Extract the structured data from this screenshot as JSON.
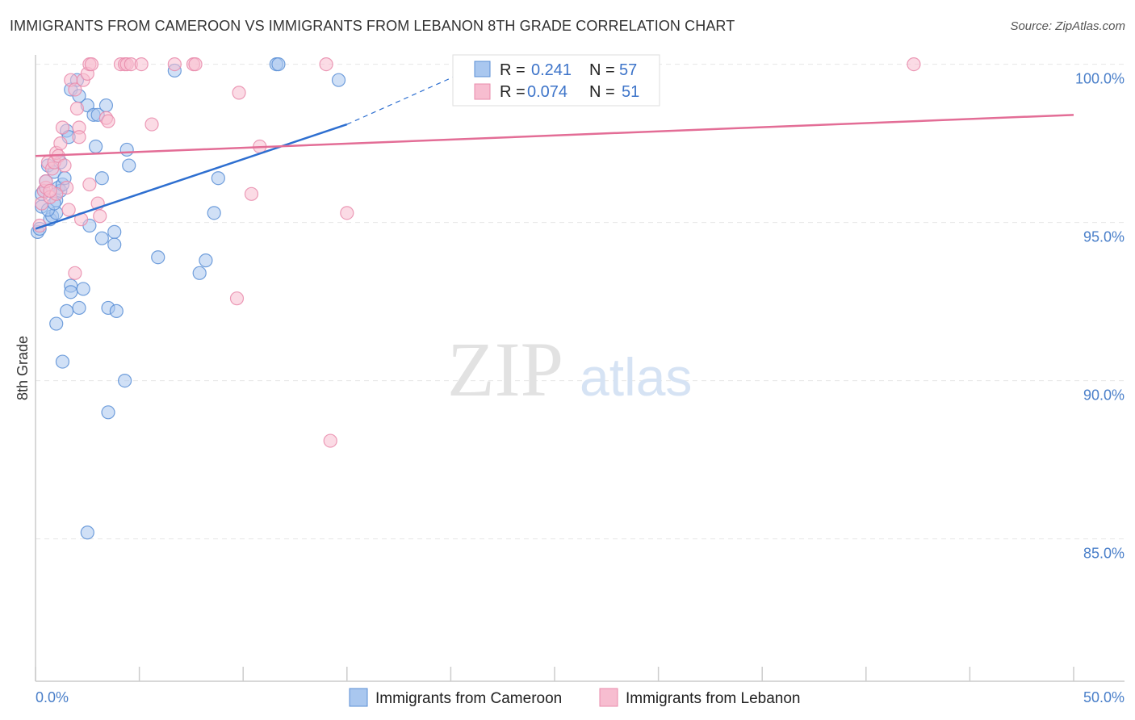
{
  "title": "IMMIGRANTS FROM CAMEROON VS IMMIGRANTS FROM LEBANON 8TH GRADE CORRELATION CHART",
  "source": "Source: ZipAtlas.com",
  "watermark": {
    "zip": "ZIP",
    "atlas": "atlas"
  },
  "colors": {
    "cameroon_fill": "#a9c7ef",
    "cameroon_stroke": "#5b8fd6",
    "cameroon_line": "#2e6fd0",
    "lebanon_fill": "#f7bdd0",
    "lebanon_stroke": "#e98bab",
    "lebanon_line": "#e36d96",
    "grid": "#e6e6e6",
    "axis": "#cccccc",
    "tick_text": "#4a7fc9"
  },
  "legend": [
    {
      "r_label": "R =",
      "r_value": "0.241",
      "n_label": "N =",
      "n_value": "57"
    },
    {
      "r_label": "R =",
      "r_value": "0.074",
      "n_label": "N =",
      "n_value": "51"
    }
  ],
  "bottom_legend": [
    "Immigrants from Cameroon",
    "Immigrants from Lebanon"
  ],
  "chart_data": {
    "type": "scatter",
    "title": "IMMIGRANTS FROM CAMEROON VS IMMIGRANTS FROM LEBANON 8TH GRADE CORRELATION CHART",
    "xlabel": "",
    "ylabel": "8th Grade",
    "xlim": [
      0,
      50
    ],
    "ylim": [
      80.5,
      100.5
    ],
    "x_ticks": [
      0,
      5,
      10,
      15,
      20,
      25,
      30,
      35,
      40,
      45,
      50
    ],
    "x_tick_labels": [
      "0.0%",
      "50.0%"
    ],
    "y_ticks": [
      85,
      90,
      95,
      100
    ],
    "y_tick_labels": [
      "85.0%",
      "90.0%",
      "95.0%",
      "100.0%"
    ],
    "grid": true,
    "legend_position": "top-center",
    "series": [
      {
        "name": "Immigrants from Cameroon",
        "r": 0.241,
        "n": 57,
        "trend": {
          "x": [
            0,
            15
          ],
          "y": [
            94.8,
            98.1
          ],
          "dashed_to": [
            21.5,
            100.0
          ]
        },
        "points": [
          [
            0.1,
            94.7
          ],
          [
            0.2,
            94.8
          ],
          [
            0.3,
            95.5
          ],
          [
            0.4,
            96.0
          ],
          [
            0.5,
            96.3
          ],
          [
            0.6,
            96.8
          ],
          [
            0.7,
            95.1
          ],
          [
            0.8,
            95.2
          ],
          [
            0.9,
            96.6
          ],
          [
            1.0,
            95.7
          ],
          [
            1.0,
            95.3
          ],
          [
            1.1,
            96.1
          ],
          [
            1.2,
            96.0
          ],
          [
            1.3,
            96.2
          ],
          [
            1.4,
            96.4
          ],
          [
            1.5,
            97.9
          ],
          [
            1.6,
            97.7
          ],
          [
            1.7,
            99.2
          ],
          [
            2.0,
            99.5
          ],
          [
            2.1,
            99.0
          ],
          [
            2.5,
            98.7
          ],
          [
            2.8,
            98.4
          ],
          [
            2.9,
            97.4
          ],
          [
            3.0,
            98.4
          ],
          [
            3.2,
            96.4
          ],
          [
            3.4,
            98.7
          ],
          [
            4.4,
            97.3
          ],
          [
            4.5,
            96.8
          ],
          [
            2.6,
            94.9
          ],
          [
            3.2,
            94.5
          ],
          [
            3.8,
            94.7
          ],
          [
            3.8,
            94.3
          ],
          [
            5.9,
            93.9
          ],
          [
            8.2,
            93.8
          ],
          [
            7.9,
            93.4
          ],
          [
            1.7,
            93.0
          ],
          [
            1.7,
            92.8
          ],
          [
            2.3,
            92.9
          ],
          [
            2.1,
            92.3
          ],
          [
            1.5,
            92.2
          ],
          [
            1.0,
            91.8
          ],
          [
            3.5,
            92.3
          ],
          [
            3.9,
            92.2
          ],
          [
            1.3,
            90.6
          ],
          [
            4.3,
            90.0
          ],
          [
            3.5,
            89.0
          ],
          [
            2.5,
            85.2
          ],
          [
            6.7,
            99.8
          ],
          [
            11.6,
            100.0
          ],
          [
            11.7,
            100.0
          ],
          [
            14.6,
            99.5
          ],
          [
            8.8,
            96.4
          ],
          [
            8.6,
            95.3
          ],
          [
            1.2,
            96.9
          ],
          [
            0.3,
            95.9
          ],
          [
            0.6,
            95.4
          ],
          [
            0.9,
            95.6
          ]
        ]
      },
      {
        "name": "Immigrants from Lebanon",
        "r": 0.074,
        "n": 51,
        "trend": {
          "x": [
            0,
            50
          ],
          "y": [
            97.1,
            98.4
          ]
        },
        "points": [
          [
            0.2,
            94.9
          ],
          [
            0.3,
            95.6
          ],
          [
            0.4,
            96.0
          ],
          [
            0.5,
            96.1
          ],
          [
            0.6,
            96.9
          ],
          [
            0.7,
            95.8
          ],
          [
            0.8,
            96.7
          ],
          [
            0.9,
            96.9
          ],
          [
            1.0,
            97.2
          ],
          [
            1.1,
            97.1
          ],
          [
            1.2,
            97.5
          ],
          [
            1.3,
            98.0
          ],
          [
            1.4,
            96.8
          ],
          [
            1.5,
            96.1
          ],
          [
            1.7,
            99.5
          ],
          [
            1.9,
            99.2
          ],
          [
            2.0,
            98.6
          ],
          [
            2.1,
            98.0
          ],
          [
            2.1,
            97.7
          ],
          [
            2.2,
            95.1
          ],
          [
            2.3,
            99.5
          ],
          [
            2.5,
            99.7
          ],
          [
            2.6,
            96.2
          ],
          [
            3.0,
            95.6
          ],
          [
            3.1,
            95.2
          ],
          [
            3.4,
            98.3
          ],
          [
            3.5,
            98.2
          ],
          [
            2.6,
            100.0
          ],
          [
            2.7,
            100.0
          ],
          [
            4.1,
            100.0
          ],
          [
            4.3,
            100.0
          ],
          [
            4.4,
            100.0
          ],
          [
            4.6,
            100.0
          ],
          [
            5.1,
            100.0
          ],
          [
            6.7,
            100.0
          ],
          [
            7.6,
            100.0
          ],
          [
            7.7,
            100.0
          ],
          [
            5.6,
            98.1
          ],
          [
            9.8,
            99.1
          ],
          [
            10.8,
            97.4
          ],
          [
            10.4,
            95.9
          ],
          [
            9.7,
            92.6
          ],
          [
            14.0,
            100.0
          ],
          [
            15.0,
            95.3
          ],
          [
            14.2,
            88.1
          ],
          [
            42.3,
            100.0
          ],
          [
            1.9,
            93.4
          ],
          [
            1.6,
            95.4
          ],
          [
            0.5,
            96.3
          ],
          [
            1.0,
            95.9
          ],
          [
            0.7,
            96.0
          ]
        ]
      }
    ]
  }
}
